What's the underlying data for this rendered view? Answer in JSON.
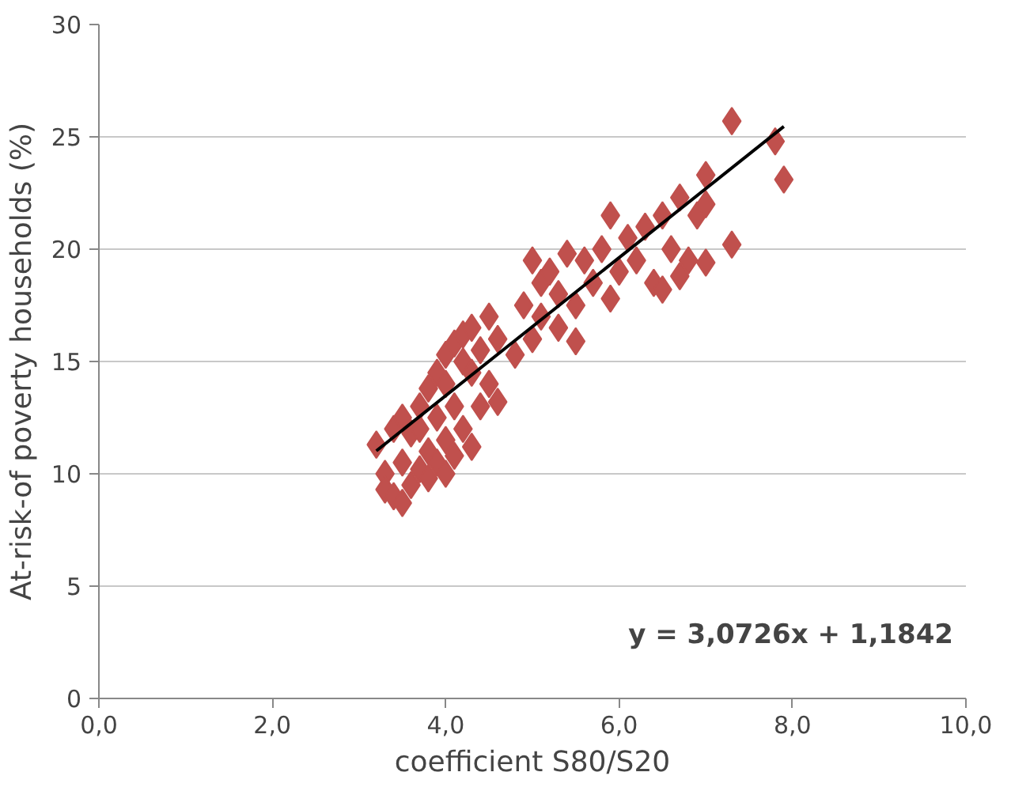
{
  "chart_data": {
    "type": "scatter",
    "xlabel": "coefficient S80/S20",
    "ylabel": "At-risk-of poverty households (%)",
    "x": [
      3.2,
      3.3,
      3.3,
      3.4,
      3.4,
      3.5,
      3.5,
      3.5,
      3.6,
      3.6,
      3.7,
      3.7,
      3.7,
      3.8,
      3.8,
      3.8,
      3.9,
      3.9,
      3.9,
      4.0,
      4.0,
      4.0,
      4.0,
      4.1,
      4.1,
      4.1,
      4.2,
      4.2,
      4.2,
      4.3,
      4.3,
      4.3,
      4.4,
      4.4,
      4.5,
      4.5,
      4.6,
      4.6,
      4.8,
      4.9,
      5.0,
      5.0,
      5.1,
      5.1,
      5.2,
      5.3,
      5.3,
      5.4,
      5.5,
      5.5,
      5.6,
      5.7,
      5.8,
      5.9,
      5.9,
      6.0,
      6.1,
      6.2,
      6.3,
      6.4,
      6.5,
      6.5,
      6.6,
      6.7,
      6.7,
      6.8,
      6.9,
      7.0,
      7.0,
      7.0,
      7.3,
      7.3,
      7.8,
      7.9
    ],
    "series": [
      {
        "color": "#c0504d",
        "marker": "diamond",
        "values": [
          11.3,
          10.0,
          9.3,
          12.0,
          9.0,
          8.7,
          12.5,
          10.5,
          11.8,
          9.5,
          13.0,
          12.0,
          10.2,
          13.8,
          11.0,
          9.8,
          14.5,
          12.5,
          10.5,
          14.0,
          15.3,
          11.5,
          10.0,
          15.8,
          13.0,
          10.8,
          15.0,
          16.2,
          12.0,
          14.5,
          16.5,
          11.2,
          15.5,
          13.0,
          17.0,
          14.0,
          13.2,
          16.0,
          15.3,
          17.5,
          19.5,
          16.0,
          18.5,
          17.0,
          19.0,
          16.5,
          18.0,
          19.8,
          17.5,
          15.9,
          19.5,
          18.5,
          20.0,
          17.8,
          21.5,
          19.0,
          20.5,
          19.5,
          21.0,
          18.5,
          18.2,
          21.5,
          20.0,
          22.3,
          18.8,
          19.5,
          21.5,
          22.0,
          19.4,
          23.3,
          25.7,
          20.2,
          24.8,
          23.1
        ]
      },
      {
        "type": "line",
        "color": "#000000",
        "marker": "none",
        "x": [
          3.2,
          7.9
        ],
        "values": [
          11.02,
          25.46
        ]
      }
    ],
    "xlim": [
      0,
      10
    ],
    "ylim": [
      0,
      30
    ],
    "xticks": [
      {
        "value": 0,
        "label": "0,0"
      },
      {
        "value": 2,
        "label": "2,0"
      },
      {
        "value": 4,
        "label": "4,0"
      },
      {
        "value": 6,
        "label": "6,0"
      },
      {
        "value": 8,
        "label": "8,0"
      },
      {
        "value": 10,
        "label": "10,0"
      }
    ],
    "yticks": [
      0,
      5,
      10,
      15,
      20,
      25,
      30
    ],
    "grid": "y",
    "annotations": [
      "y = 3,0726x + 1,1842"
    ]
  }
}
